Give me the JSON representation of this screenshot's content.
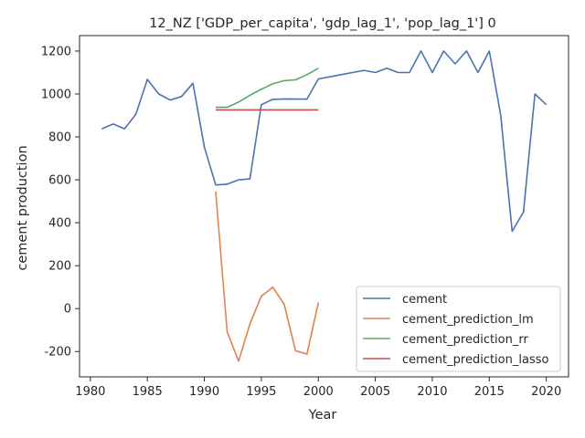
{
  "chart_data": {
    "type": "line",
    "title": "12_NZ ['GDP_per_capita', 'gdp_lag_1', 'pop_lag_1'] 0",
    "xlabel": "Year",
    "ylabel": "cement production",
    "xlim": [
      1979.05,
      2021.95
    ],
    "ylim": [
      -318,
      1272
    ],
    "xticks": [
      1980,
      1985,
      1990,
      1995,
      2000,
      2005,
      2010,
      2015,
      2020
    ],
    "yticks": [
      -200,
      0,
      200,
      400,
      600,
      800,
      1000,
      1200
    ],
    "grid": false,
    "legend_position": "lower right",
    "series": [
      {
        "name": "cement",
        "color": "#4c72b0",
        "x": [
          1981,
          1982,
          1983,
          1984,
          1985,
          1986,
          1987,
          1988,
          1989,
          1990,
          1991,
          1992,
          1993,
          1994,
          1995,
          1996,
          1997,
          1998,
          1999,
          2000,
          2001,
          2002,
          2003,
          2004,
          2005,
          2006,
          2007,
          2008,
          2009,
          2010,
          2011,
          2012,
          2013,
          2014,
          2015,
          2016,
          2017,
          2018,
          2019,
          2020
        ],
        "y": [
          838,
          860,
          838,
          906,
          1068,
          1000,
          972,
          988,
          1050,
          752,
          576,
          580,
          600,
          604,
          950,
          975,
          977,
          976,
          976,
          1070,
          1080,
          1090,
          1100,
          1110,
          1100,
          1120,
          1100,
          1100,
          1200,
          1100,
          1200,
          1140,
          1200,
          1100,
          1200,
          900,
          360,
          450,
          1000,
          950
        ]
      },
      {
        "name": "cement_prediction_lm",
        "color": "#dd8452",
        "x": [
          1991,
          1992,
          1993,
          1994,
          1995,
          1996,
          1997,
          1998,
          1999,
          2000
        ],
        "y": [
          546,
          -108,
          -245,
          -72,
          58,
          100,
          20,
          -196,
          -212,
          28
        ]
      },
      {
        "name": "cement_prediction_rr",
        "color": "#55a868",
        "x": [
          1991,
          1992,
          1993,
          1994,
          1995,
          1996,
          1997,
          1998,
          1999,
          2000
        ],
        "y": [
          938,
          938,
          962,
          994,
          1022,
          1047,
          1062,
          1066,
          1090,
          1120
        ]
      },
      {
        "name": "cement_prediction_lasso",
        "color": "#c44e52",
        "x": [
          1991,
          1992,
          1993,
          1994,
          1995,
          1996,
          1997,
          1998,
          1999,
          2000
        ],
        "y": [
          926,
          926,
          926,
          926,
          926,
          926,
          926,
          926,
          926,
          926
        ]
      }
    ]
  }
}
